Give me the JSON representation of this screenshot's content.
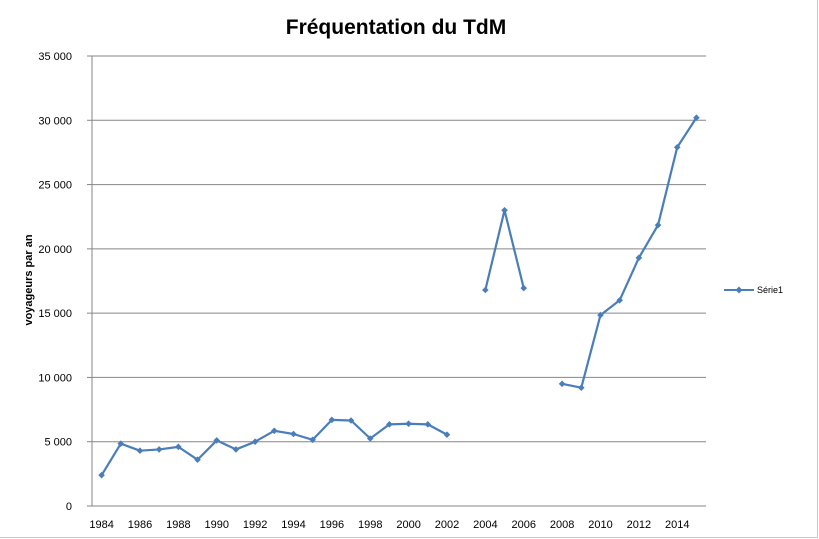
{
  "chart_data": {
    "type": "line",
    "title": "Fréquentation du TdM",
    "xlabel": "",
    "ylabel": "voyageurs par an",
    "ylim": [
      0,
      35000
    ],
    "y_ticks": [
      "0",
      "5 000",
      "10 000",
      "15 000",
      "20 000",
      "25 000",
      "30 000",
      "35 000"
    ],
    "x_ticks": [
      "1984",
      "1986",
      "1988",
      "1990",
      "1992",
      "1994",
      "1996",
      "1998",
      "2000",
      "2002",
      "2004",
      "2006",
      "2008",
      "2010",
      "2012",
      "2014"
    ],
    "x": [
      1984,
      1985,
      1986,
      1987,
      1988,
      1989,
      1990,
      1991,
      1992,
      1993,
      1994,
      1995,
      1996,
      1997,
      1998,
      1999,
      2000,
      2001,
      2002,
      2003,
      2004,
      2005,
      2006,
      2007,
      2008,
      2009,
      2010,
      2011,
      2012,
      2013,
      2014,
      2015
    ],
    "series": [
      {
        "name": "Série1",
        "values": [
          2400,
          4850,
          4300,
          4400,
          4600,
          3600,
          5100,
          4400,
          5000,
          5850,
          5600,
          5150,
          6700,
          6650,
          5250,
          6350,
          6400,
          6350,
          5550,
          null,
          16800,
          23000,
          16950,
          null,
          9500,
          9200,
          14850,
          16000,
          19300,
          21850,
          27900,
          30200
        ]
      }
    ],
    "grid": true,
    "legend": "right",
    "colors": {
      "series": "#4a7ebb",
      "grid": "#868686",
      "axis": "#868686"
    }
  }
}
